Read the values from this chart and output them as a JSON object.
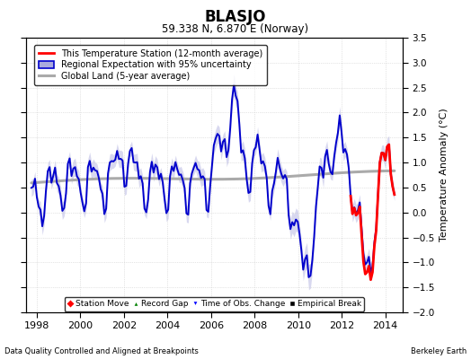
{
  "title": "BLASJO",
  "subtitle": "59.338 N, 6.870 E (Norway)",
  "ylabel": "Temperature Anomaly (°C)",
  "xlabel_left": "Data Quality Controlled and Aligned at Breakpoints",
  "xlabel_right": "Berkeley Earth",
  "ylim": [
    -2.0,
    3.5
  ],
  "xlim": [
    1997.5,
    2014.8
  ],
  "xticks": [
    1998,
    2000,
    2002,
    2004,
    2006,
    2008,
    2010,
    2012,
    2014
  ],
  "yticks": [
    -2,
    -1.5,
    -1,
    -0.5,
    0,
    0.5,
    1,
    1.5,
    2,
    2.5,
    3,
    3.5
  ],
  "legend_entries": [
    "This Temperature Station (12-month average)",
    "Regional Expectation with 95% uncertainty",
    "Global Land (5-year average)"
  ],
  "line_colors": {
    "station": "#FF0000",
    "regional": "#0000CC",
    "global": "#AAAAAA"
  },
  "fill_color": "#AAAADD",
  "background_color": "#FFFFFF",
  "grid_color": "#CCCCCC"
}
